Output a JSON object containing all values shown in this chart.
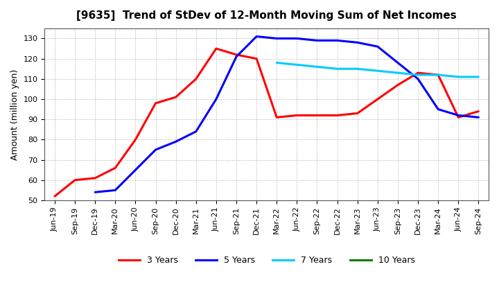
{
  "title": "[9635]  Trend of StDev of 12-Month Moving Sum of Net Incomes",
  "ylabel": "Amount (million yen)",
  "background_color": "#ffffff",
  "grid_color": "#aaaaaa",
  "ylim": [
    50,
    135
  ],
  "yticks": [
    50,
    60,
    70,
    80,
    90,
    100,
    110,
    120,
    130
  ],
  "x_labels": [
    "Jun-19",
    "Sep-19",
    "Dec-19",
    "Mar-20",
    "Jun-20",
    "Sep-20",
    "Dec-20",
    "Mar-21",
    "Jun-21",
    "Sep-21",
    "Dec-21",
    "Mar-22",
    "Jun-22",
    "Sep-22",
    "Dec-22",
    "Mar-23",
    "Jun-23",
    "Sep-23",
    "Dec-23",
    "Mar-24",
    "Jun-24",
    "Sep-24"
  ],
  "series_order": [
    "3 Years",
    "5 Years",
    "7 Years",
    "10 Years"
  ],
  "series": {
    "3 Years": {
      "color": "#ff0000",
      "linewidth": 2.2,
      "x_indices": [
        0,
        1,
        2,
        3,
        4,
        5,
        6,
        7,
        8,
        9,
        10,
        11,
        12,
        13,
        14,
        15,
        16,
        17,
        18,
        19,
        20,
        21
      ],
      "y": [
        52,
        60,
        61,
        66,
        80,
        98,
        101,
        110,
        125,
        122,
        120,
        91,
        92,
        92,
        92,
        93,
        100,
        107,
        113,
        112,
        91,
        94
      ]
    },
    "5 Years": {
      "color": "#0000ff",
      "linewidth": 2.2,
      "x_indices": [
        2,
        3,
        4,
        5,
        6,
        7,
        8,
        9,
        10,
        11,
        12,
        13,
        14,
        15,
        16,
        17,
        18,
        19,
        20,
        21
      ],
      "y": [
        54,
        55,
        65,
        75,
        79,
        84,
        100,
        121,
        131,
        130,
        130,
        129,
        129,
        128,
        126,
        118,
        110,
        95,
        92,
        91
      ]
    },
    "7 Years": {
      "color": "#00ccff",
      "linewidth": 2.2,
      "x_indices": [
        11,
        12,
        13,
        14,
        15,
        16,
        17,
        18,
        19,
        20,
        21
      ],
      "y": [
        118,
        117,
        116,
        115,
        115,
        114,
        113,
        112,
        112,
        111,
        111
      ]
    },
    "10 Years": {
      "color": "#008000",
      "linewidth": 2.2,
      "x_indices": [],
      "y": []
    }
  },
  "legend_labels": [
    "3 Years",
    "5 Years",
    "7 Years",
    "10 Years"
  ],
  "legend_colors": [
    "#ff0000",
    "#0000ff",
    "#00ccff",
    "#008000"
  ]
}
